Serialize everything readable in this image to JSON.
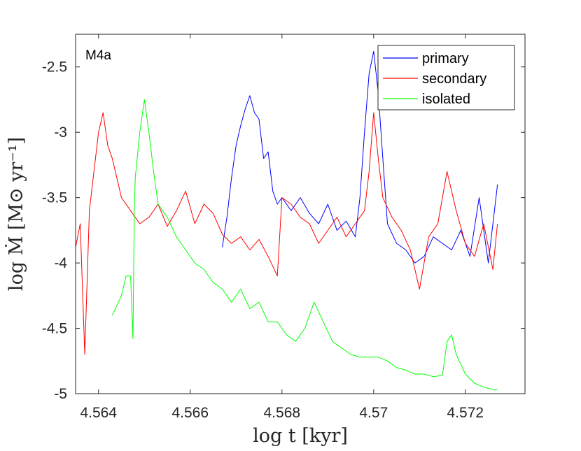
{
  "chart_data": {
    "type": "line",
    "annotation": "M4a",
    "xlabel": "log t [kyr]",
    "ylabel": "log Ṁ [M⊙ yr⁻¹]",
    "xlim": [
      4.5635,
      4.5733
    ],
    "ylim": [
      -5,
      -2.25
    ],
    "xticks": [
      4.564,
      4.566,
      4.568,
      4.57,
      4.572
    ],
    "xtick_labels": [
      "4.564",
      "4.566",
      "4.568",
      "4.57",
      "4.572"
    ],
    "yticks": [
      -5,
      -4.5,
      -4,
      -3.5,
      -3,
      -2.5
    ],
    "ytick_labels": [
      "-5",
      "-4.5",
      "-4",
      "-3.5",
      "-3",
      "-2.5"
    ],
    "legend_position": "top-right",
    "series": [
      {
        "name": "primary",
        "color": "#0000ff",
        "x": [
          4.5667,
          4.5668,
          4.5669,
          4.567,
          4.5671,
          4.5672,
          4.5673,
          4.5674,
          4.5675,
          4.5676,
          4.5677,
          4.5678,
          4.5679,
          4.568,
          4.5682,
          4.5684,
          4.5686,
          4.5688,
          4.569,
          4.5692,
          4.5694,
          4.5696,
          4.5697,
          4.5698,
          4.5699,
          4.57,
          4.5701,
          4.5702,
          4.5703,
          4.5705,
          4.5707,
          4.5709,
          4.5711,
          4.5713,
          4.5715,
          4.5717,
          4.5719,
          4.5721,
          4.5723,
          4.5725,
          4.5727
        ],
        "y": [
          -3.88,
          -3.65,
          -3.35,
          -3.1,
          -2.95,
          -2.82,
          -2.72,
          -2.85,
          -2.9,
          -3.2,
          -3.15,
          -3.45,
          -3.55,
          -3.5,
          -3.6,
          -3.5,
          -3.62,
          -3.7,
          -3.55,
          -3.75,
          -3.68,
          -3.8,
          -3.5,
          -3.0,
          -2.55,
          -2.38,
          -2.7,
          -3.2,
          -3.7,
          -3.85,
          -3.9,
          -4.0,
          -3.95,
          -3.8,
          -3.85,
          -3.9,
          -3.75,
          -3.95,
          -3.5,
          -4.0,
          -3.4
        ]
      },
      {
        "name": "secondary",
        "color": "#ff0000",
        "x": [
          4.5635,
          4.5636,
          4.5637,
          4.5638,
          4.5639,
          4.564,
          4.5641,
          4.5642,
          4.5643,
          4.5644,
          4.5645,
          4.5647,
          4.5649,
          4.5651,
          4.5653,
          4.5655,
          4.5657,
          4.5659,
          4.5661,
          4.5663,
          4.5665,
          4.5667,
          4.5669,
          4.5671,
          4.5673,
          4.5675,
          4.5677,
          4.5679,
          4.568,
          4.5682,
          4.5684,
          4.5686,
          4.5688,
          4.569,
          4.5692,
          4.5694,
          4.5696,
          4.5698,
          4.5699,
          4.57,
          4.5701,
          4.5702,
          4.5704,
          4.5706,
          4.5708,
          4.571,
          4.5712,
          4.5714,
          4.5716,
          4.5718,
          4.572,
          4.5722,
          4.5724,
          4.5726,
          4.5727
        ],
        "y": [
          -3.88,
          -3.7,
          -4.7,
          -3.6,
          -3.3,
          -3.0,
          -2.85,
          -3.1,
          -3.2,
          -3.35,
          -3.5,
          -3.6,
          -3.7,
          -3.65,
          -3.55,
          -3.72,
          -3.6,
          -3.45,
          -3.7,
          -3.55,
          -3.62,
          -3.78,
          -3.85,
          -3.8,
          -3.9,
          -3.82,
          -3.95,
          -4.1,
          -3.5,
          -3.55,
          -3.65,
          -3.7,
          -3.85,
          -3.75,
          -3.65,
          -3.8,
          -3.7,
          -3.6,
          -3.3,
          -2.85,
          -3.2,
          -3.5,
          -3.65,
          -3.75,
          -3.9,
          -4.2,
          -3.8,
          -3.7,
          -3.3,
          -3.6,
          -3.85,
          -3.95,
          -3.7,
          -4.05,
          -3.7
        ]
      },
      {
        "name": "isolated",
        "color": "#00ff00",
        "x": [
          4.5643,
          4.5645,
          4.5646,
          4.5647,
          4.56475,
          4.56478,
          4.5648,
          4.5649,
          4.565,
          4.5651,
          4.5652,
          4.5653,
          4.5655,
          4.5657,
          4.5659,
          4.5661,
          4.5663,
          4.5665,
          4.5667,
          4.5669,
          4.5671,
          4.5673,
          4.5675,
          4.5677,
          4.5679,
          4.5681,
          4.5683,
          4.5685,
          4.5687,
          4.5689,
          4.5691,
          4.5693,
          4.5695,
          4.5697,
          4.5699,
          4.5701,
          4.5703,
          4.5705,
          4.5707,
          4.5709,
          4.5711,
          4.5713,
          4.5715,
          4.5716,
          4.5717,
          4.5718,
          4.572,
          4.5722,
          4.5724,
          4.5725,
          4.5726,
          4.5727
        ],
        "y": [
          -4.4,
          -4.25,
          -4.1,
          -4.1,
          -4.58,
          -3.6,
          -3.35,
          -3.0,
          -2.75,
          -3.0,
          -3.3,
          -3.55,
          -3.65,
          -3.8,
          -3.9,
          -4.0,
          -4.05,
          -4.15,
          -4.2,
          -4.3,
          -4.2,
          -4.35,
          -4.3,
          -4.45,
          -4.45,
          -4.55,
          -4.6,
          -4.5,
          -4.3,
          -4.45,
          -4.6,
          -4.65,
          -4.7,
          -4.72,
          -4.72,
          -4.72,
          -4.75,
          -4.8,
          -4.82,
          -4.85,
          -4.85,
          -4.87,
          -4.86,
          -4.6,
          -4.55,
          -4.7,
          -4.85,
          -4.92,
          -4.95,
          -4.96,
          -4.97,
          -4.97
        ]
      }
    ]
  }
}
